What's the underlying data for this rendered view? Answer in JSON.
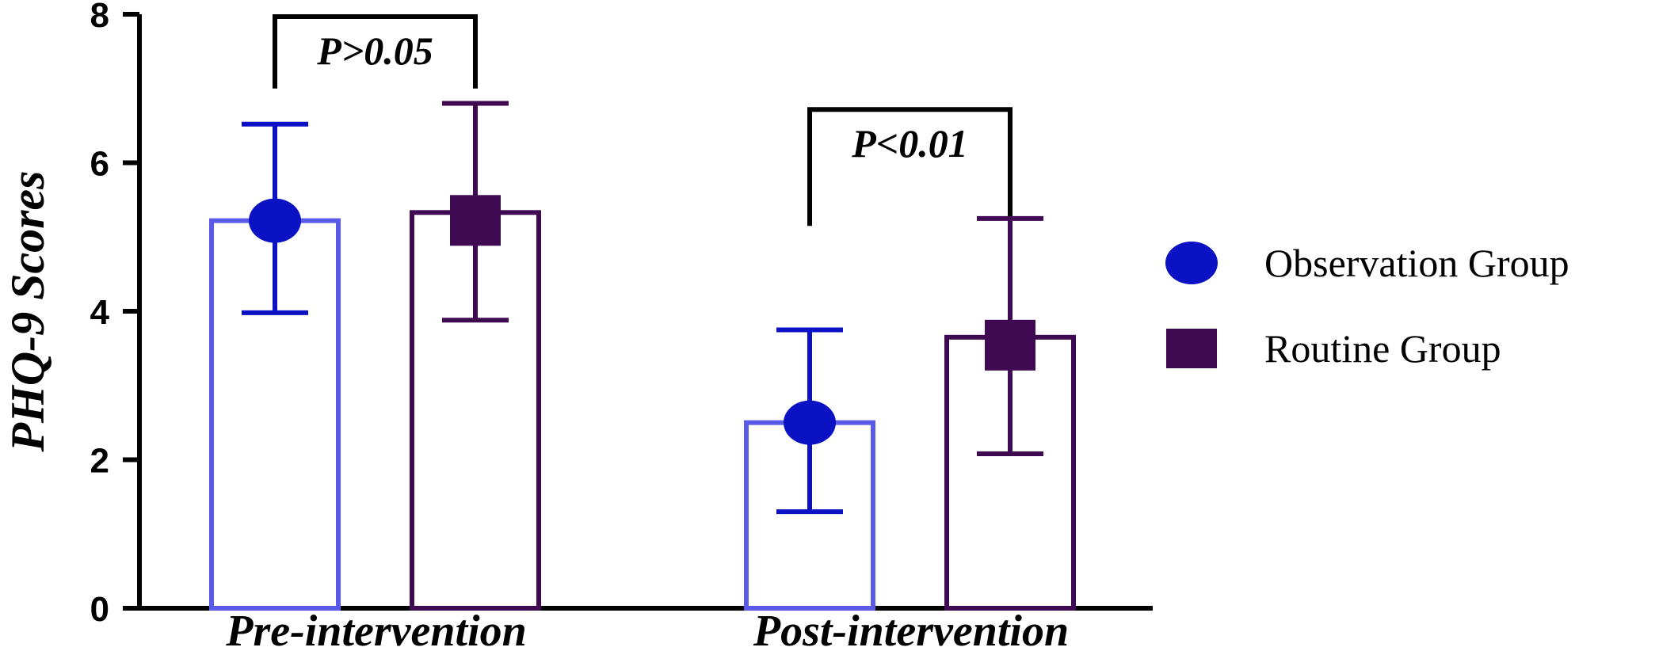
{
  "chart_data": {
    "type": "bar",
    "title": "",
    "xlabel": "",
    "ylabel": "PHQ-9 Scores",
    "ylim": [
      0,
      8
    ],
    "yticks": [
      "0",
      "2",
      "4",
      "6",
      "8"
    ],
    "categories": [
      "Pre-intervention",
      "Post-intervention"
    ],
    "series": [
      {
        "name": "Observation Group",
        "marker": "circle",
        "bar_color": "#5a5ae8",
        "marker_color": "#0b12c4",
        "values": [
          5.22,
          2.5
        ],
        "error_low": [
          3.98,
          1.3
        ],
        "error_high": [
          6.52,
          3.75
        ]
      },
      {
        "name": "Routine Group",
        "marker": "square",
        "bar_color": "#3f0a52",
        "marker_color": "#3f0a52",
        "values": [
          5.33,
          3.65
        ],
        "error_low": [
          3.88,
          2.08
        ],
        "error_high": [
          6.8,
          5.25
        ]
      }
    ],
    "annotations": [
      {
        "text": "P>0.05",
        "category_index": 0,
        "bracket_top": 8.0,
        "bracket_bottom": 7.0
      },
      {
        "text": "P<0.01",
        "category_index": 1,
        "bracket_top": 6.75,
        "bracket_bottom": 5.15
      }
    ],
    "legend_position": "right",
    "grid": false
  }
}
